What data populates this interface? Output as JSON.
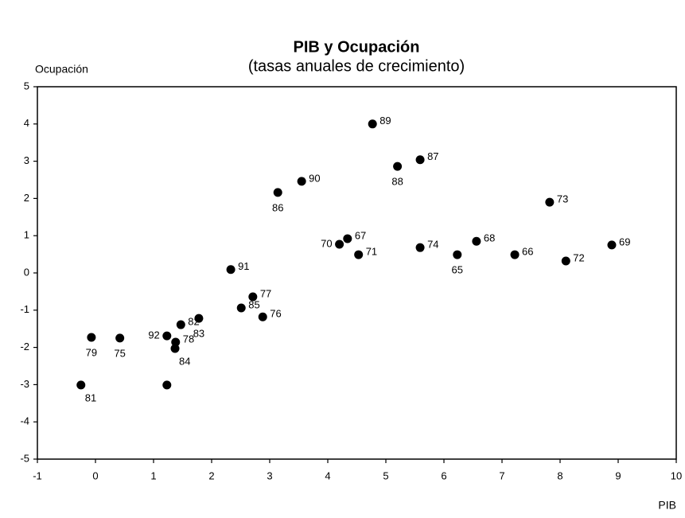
{
  "chart_data": {
    "type": "scatter",
    "title": "PIB y Ocupación",
    "subtitle": "(tasas anuales de crecimiento)",
    "x_label": "PIB",
    "y_label": "Ocupación",
    "series": [
      {
        "color": "#000000",
        "x": [
          4.77,
          5.59,
          5.2,
          3.55,
          3.14,
          7.82,
          4.2,
          4.34,
          4.53,
          5.59,
          6.23,
          6.56,
          7.22,
          8.1,
          8.89,
          2.33,
          2.71,
          2.51,
          2.88,
          1.78,
          1.47,
          1.23,
          1.38,
          1.37,
          -0.07,
          0.42,
          -0.25,
          1.23
        ],
        "values": [
          4.0,
          3.04,
          2.86,
          2.46,
          2.16,
          1.9,
          0.77,
          0.92,
          0.49,
          0.68,
          0.49,
          0.85,
          0.49,
          0.32,
          0.75,
          0.09,
          -0.64,
          -0.94,
          -1.18,
          -1.22,
          -1.39,
          -1.69,
          -1.86,
          -2.03,
          -1.73,
          -1.75,
          -3.01,
          -3.01
        ],
        "labels": [
          "89",
          "87",
          "88",
          "90",
          "86",
          "73",
          "70",
          "67",
          "71",
          "74",
          "65",
          "68",
          "66",
          "72",
          "69",
          "91",
          "77",
          "85",
          "76",
          "83",
          "82",
          "92",
          "78",
          "84",
          "79",
          "75",
          "81",
          null
        ]
      }
    ],
    "xlim": [
      -1,
      10
    ],
    "xticks": [
      -1,
      0,
      1,
      2,
      3,
      4,
      5,
      6,
      7,
      8,
      9,
      10
    ],
    "ylim": [
      -5,
      5
    ],
    "yticks": [
      -5,
      -4,
      -3,
      -2,
      -1,
      0,
      1,
      2,
      3,
      4,
      5
    ]
  }
}
